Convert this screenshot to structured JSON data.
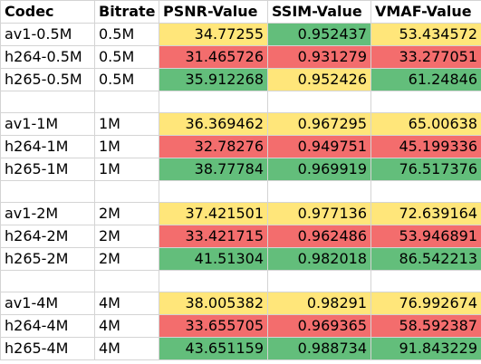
{
  "headers": [
    "Codec",
    "Bitrate",
    "PSNR-Value",
    "SSIM-Value",
    "VMAF-Value"
  ],
  "colors": {
    "good": "#63be7b",
    "mid": "#ffe67a",
    "bad": "#f36d6d"
  },
  "groups": [
    {
      "rows": [
        {
          "codec": "av1-0.5M",
          "bitrate": "0.5M",
          "psnr": "34.77255",
          "psnr_c": "mid",
          "ssim": "0.952437",
          "ssim_c": "good",
          "vmaf": "53.434572",
          "vmaf_c": "mid"
        },
        {
          "codec": "h264-0.5M",
          "bitrate": "0.5M",
          "psnr": "31.465726",
          "psnr_c": "bad",
          "ssim": "0.931279",
          "ssim_c": "bad",
          "vmaf": "33.277051",
          "vmaf_c": "bad"
        },
        {
          "codec": "h265-0.5M",
          "bitrate": "0.5M",
          "psnr": "35.912268",
          "psnr_c": "good",
          "ssim": "0.952426",
          "ssim_c": "mid",
          "vmaf": "61.24846",
          "vmaf_c": "good"
        }
      ]
    },
    {
      "rows": [
        {
          "codec": "av1-1M",
          "bitrate": "1M",
          "psnr": "36.369462",
          "psnr_c": "mid",
          "ssim": "0.967295",
          "ssim_c": "mid",
          "vmaf": "65.00638",
          "vmaf_c": "mid"
        },
        {
          "codec": "h264-1M",
          "bitrate": "1M",
          "psnr": "32.78276",
          "psnr_c": "bad",
          "ssim": "0.949751",
          "ssim_c": "bad",
          "vmaf": "45.199336",
          "vmaf_c": "bad"
        },
        {
          "codec": "h265-1M",
          "bitrate": "1M",
          "psnr": "38.77784",
          "psnr_c": "good",
          "ssim": "0.969919",
          "ssim_c": "good",
          "vmaf": "76.517376",
          "vmaf_c": "good"
        }
      ]
    },
    {
      "rows": [
        {
          "codec": "av1-2M",
          "bitrate": "2M",
          "psnr": "37.421501",
          "psnr_c": "mid",
          "ssim": "0.977136",
          "ssim_c": "mid",
          "vmaf": "72.639164",
          "vmaf_c": "mid"
        },
        {
          "codec": "h264-2M",
          "bitrate": "2M",
          "psnr": "33.421715",
          "psnr_c": "bad",
          "ssim": "0.962486",
          "ssim_c": "bad",
          "vmaf": "53.946891",
          "vmaf_c": "bad"
        },
        {
          "codec": "h265-2M",
          "bitrate": "2M",
          "psnr": "41.51304",
          "psnr_c": "good",
          "ssim": "0.982018",
          "ssim_c": "good",
          "vmaf": "86.542213",
          "vmaf_c": "good"
        }
      ]
    },
    {
      "rows": [
        {
          "codec": "av1-4M",
          "bitrate": "4M",
          "psnr": "38.005382",
          "psnr_c": "mid",
          "ssim": "0.98291",
          "ssim_c": "mid",
          "vmaf": "76.992674",
          "vmaf_c": "mid"
        },
        {
          "codec": "h264-4M",
          "bitrate": "4M",
          "psnr": "33.655705",
          "psnr_c": "bad",
          "ssim": "0.969365",
          "ssim_c": "bad",
          "vmaf": "58.592387",
          "vmaf_c": "bad"
        },
        {
          "codec": "h265-4M",
          "bitrate": "4M",
          "psnr": "43.651159",
          "psnr_c": "good",
          "ssim": "0.988734",
          "ssim_c": "good",
          "vmaf": "91.843229",
          "vmaf_c": "good"
        }
      ]
    }
  ]
}
